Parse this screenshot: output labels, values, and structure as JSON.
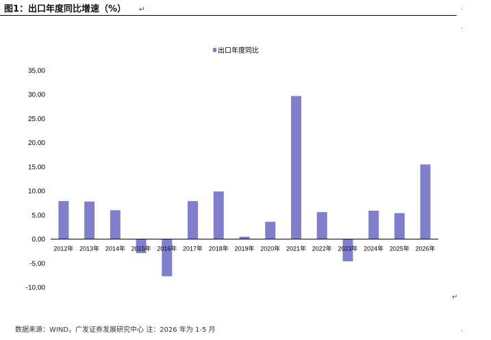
{
  "figure_title": "图1：出口年度同比增速（%）",
  "return_mark": "↵",
  "source_note": "数据来源：WIND，广发证券发展研究中心 注：2026 年为 1-5 月",
  "chart_data": {
    "type": "bar",
    "title": "",
    "xlabel": "",
    "ylabel": "",
    "legend": {
      "position": "top-center",
      "entries": [
        "出口年度同比"
      ]
    },
    "categories": [
      "2012年",
      "2013年",
      "2014年",
      "2015年",
      "2016年",
      "2017年",
      "2018年",
      "2019年",
      "2020年",
      "2021年",
      "2022年",
      "2023年",
      "2024年",
      "2025年",
      "2026年"
    ],
    "series": [
      {
        "name": "出口年度同比",
        "color": "#7f7fcc",
        "values": [
          7.9,
          7.8,
          6.0,
          -2.9,
          -7.7,
          7.9,
          9.9,
          0.5,
          3.6,
          29.7,
          5.6,
          -4.6,
          5.9,
          5.4,
          15.5
        ]
      }
    ],
    "ylim": [
      -10,
      35
    ],
    "y_ticks": [
      "35.00",
      "30.00",
      "25.00",
      "20.00",
      "15.00",
      "10.00",
      "5.00",
      "0.00",
      "-5.00",
      "-10.00"
    ],
    "grid": false
  }
}
